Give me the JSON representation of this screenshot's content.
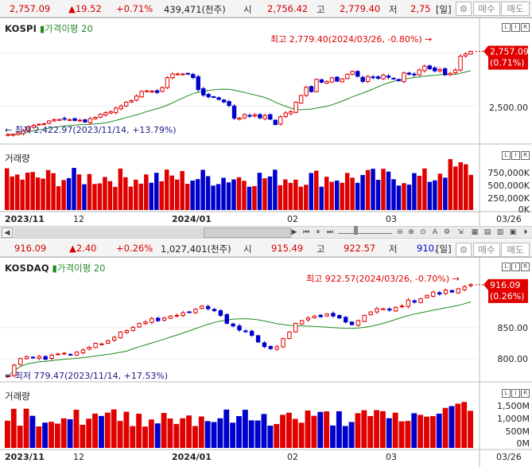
{
  "kospi_quote": {
    "price": "2,757.09",
    "change": "▲19.52",
    "pct": "+0.71%",
    "volume": "439,471(천주)",
    "open_label": "시",
    "open": "2,756.42",
    "high_label": "고",
    "high": "2,779.40",
    "low_label": "저",
    "low": "2,75",
    "period": "[일]",
    "buy_label": "매수",
    "sell_label": "매도"
  },
  "kosdaq_quote": {
    "price": "916.09",
    "change": "▲2.40",
    "pct": "+0.26%",
    "volume": "1,027,401(천주)",
    "open_label": "시",
    "open": "915.49",
    "high_label": "고",
    "high": "922.57",
    "low_label": "저",
    "low": "910.",
    "period": "[일]",
    "buy_label": "매수",
    "sell_label": "매도"
  },
  "kospi_chart": {
    "name": "KOSPI",
    "ma_label": "가격이평 20",
    "high_note": "최고 2,779.40(2024/03/26, -0.80%)",
    "low_note": "최저 2,422.97(2023/11/14, +13.79%)",
    "current_price": "2,757.09",
    "current_pct": "(0.71%)",
    "y_ticks": [
      "2,500.00"
    ],
    "volume_title": "거래량",
    "volume_ticks": [
      "750,000K",
      "500,000K",
      "250,000K",
      "0K"
    ]
  },
  "kosdaq_chart": {
    "name": "KOSDAQ",
    "ma_label": "가격이평 20",
    "high_note": "최고 922.57(2024/03/26, -0.70%)",
    "low_note": "최저 779.47(2023/11/14, +17.53%)",
    "current_price": "916.09",
    "current_pct": "(0.26%)",
    "y_ticks": [
      "850.00",
      "800.00"
    ],
    "volume_title": "거래량",
    "volume_ticks": [
      "1,500M",
      "1,000M",
      "500M",
      "0M"
    ]
  },
  "date_axis": {
    "labels": [
      "2023/11",
      "12",
      "2024/01",
      "02",
      "03"
    ],
    "end_label": "03/26"
  },
  "corner_buttons": [
    "L",
    "I",
    "R"
  ],
  "colors": {
    "up": "#e00000",
    "down": "#0000cc",
    "ma": "#1f8a1f",
    "accent": "#e00000"
  },
  "chart_data": [
    {
      "type": "candlestick",
      "title": "KOSPI",
      "ylim": [
        2390,
        2830
      ],
      "close": [
        2433,
        2434,
        2440,
        2448,
        2463,
        2469,
        2473,
        2475,
        2486,
        2491,
        2492,
        2494,
        2491,
        2488,
        2489,
        2482,
        2495,
        2500,
        2512,
        2518,
        2522,
        2536,
        2544,
        2559,
        2565,
        2583,
        2601,
        2603,
        2602,
        2597,
        2616,
        2655,
        2669,
        2669,
        2669,
        2669,
        2655,
        2608,
        2587,
        2580,
        2578,
        2570,
        2560,
        2546,
        2497,
        2497,
        2511,
        2506,
        2510,
        2498,
        2507,
        2493,
        2472,
        2502,
        2517,
        2522,
        2559,
        2585,
        2617,
        2600,
        2648,
        2637,
        2640,
        2654,
        2641,
        2650,
        2668,
        2679,
        2660,
        2640,
        2659,
        2656,
        2652,
        2665,
        2656,
        2650,
        2643,
        2673,
        2668,
        2665,
        2685,
        2699,
        2689,
        2681,
        2686,
        2666,
        2671,
        2684,
        2738,
        2747,
        2757
      ],
      "ma": "20-day moving average"
    },
    {
      "type": "volume",
      "title": "KOSPI 거래량",
      "ylim": [
        0,
        1000000
      ],
      "units": "K"
    },
    {
      "type": "candlestick",
      "title": "KOSDAQ",
      "ylim": [
        770,
        935
      ],
      "close": [
        779,
        795,
        805,
        808,
        806,
        808,
        804,
        810,
        812,
        813,
        811,
        815,
        818,
        822,
        828,
        827,
        832,
        837,
        845,
        847,
        852,
        858,
        860,
        865,
        862,
        866,
        869,
        870,
        874,
        875,
        879,
        884,
        880,
        877,
        870,
        858,
        854,
        848,
        846,
        840,
        830,
        823,
        820,
        823,
        835,
        845,
        858,
        862,
        866,
        869,
        868,
        872,
        869,
        866,
        860,
        856,
        862,
        870,
        875,
        880,
        880,
        878,
        882,
        884,
        893,
        890,
        895,
        900,
        905,
        902,
        908,
        905,
        910,
        913,
        916
      ],
      "ma": "20-day moving average"
    },
    {
      "type": "volume",
      "title": "KOSDAQ 거래량",
      "ylim": [
        0,
        2000
      ],
      "units": "M"
    }
  ]
}
